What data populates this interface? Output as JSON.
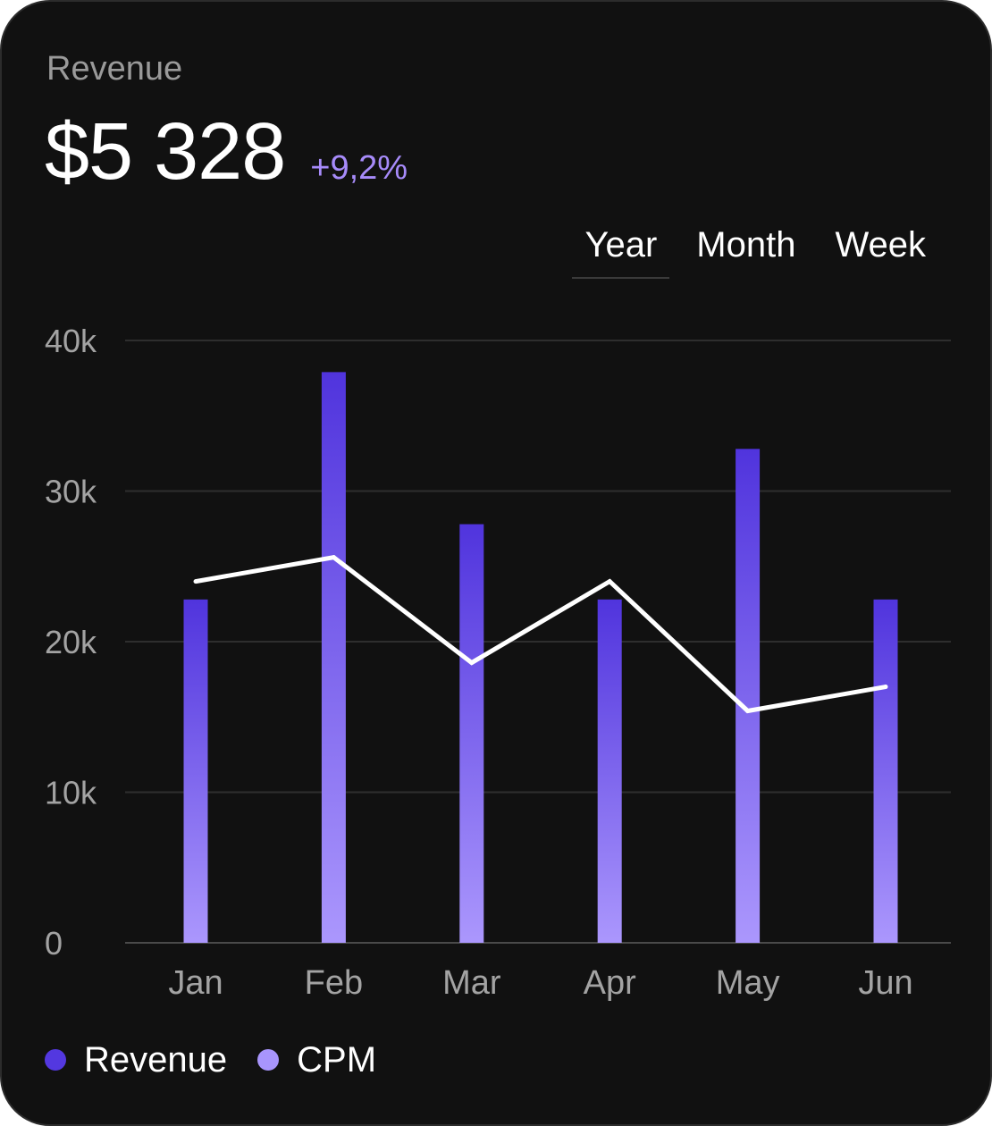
{
  "header": {
    "label": "Revenue",
    "value": "$5 328",
    "change": "+9,2%"
  },
  "tabs": [
    {
      "label": "Year",
      "active": true
    },
    {
      "label": "Month",
      "active": false
    },
    {
      "label": "Week",
      "active": false
    }
  ],
  "legend": [
    {
      "label": "Revenue",
      "color": "#5338e0"
    },
    {
      "label": "CPM",
      "color": "#a895fc"
    }
  ],
  "colors": {
    "bar_top": "#5034dd",
    "bar_bottom": "#ab97fd",
    "line": "#ffffff",
    "grid": "#2e2e2e",
    "tick": "#a3a3a3"
  },
  "chart_data": {
    "type": "bar",
    "categories": [
      "Jan",
      "Feb",
      "Mar",
      "Apr",
      "May",
      "Jun"
    ],
    "ylim": [
      0,
      40000
    ],
    "yticks": [
      {
        "value": 0,
        "label": "0"
      },
      {
        "value": 10000,
        "label": "10k"
      },
      {
        "value": 20000,
        "label": "20k"
      },
      {
        "value": 30000,
        "label": "30k"
      },
      {
        "value": 40000,
        "label": "40k"
      }
    ],
    "series": [
      {
        "name": "Revenue",
        "type": "bar",
        "values": [
          22800,
          37900,
          27800,
          22800,
          32800,
          22800
        ]
      },
      {
        "name": "CPM",
        "type": "line",
        "values": [
          24000,
          25600,
          18600,
          24000,
          15400,
          17000
        ]
      }
    ],
    "grid": true,
    "legend_position": "bottom-left"
  }
}
